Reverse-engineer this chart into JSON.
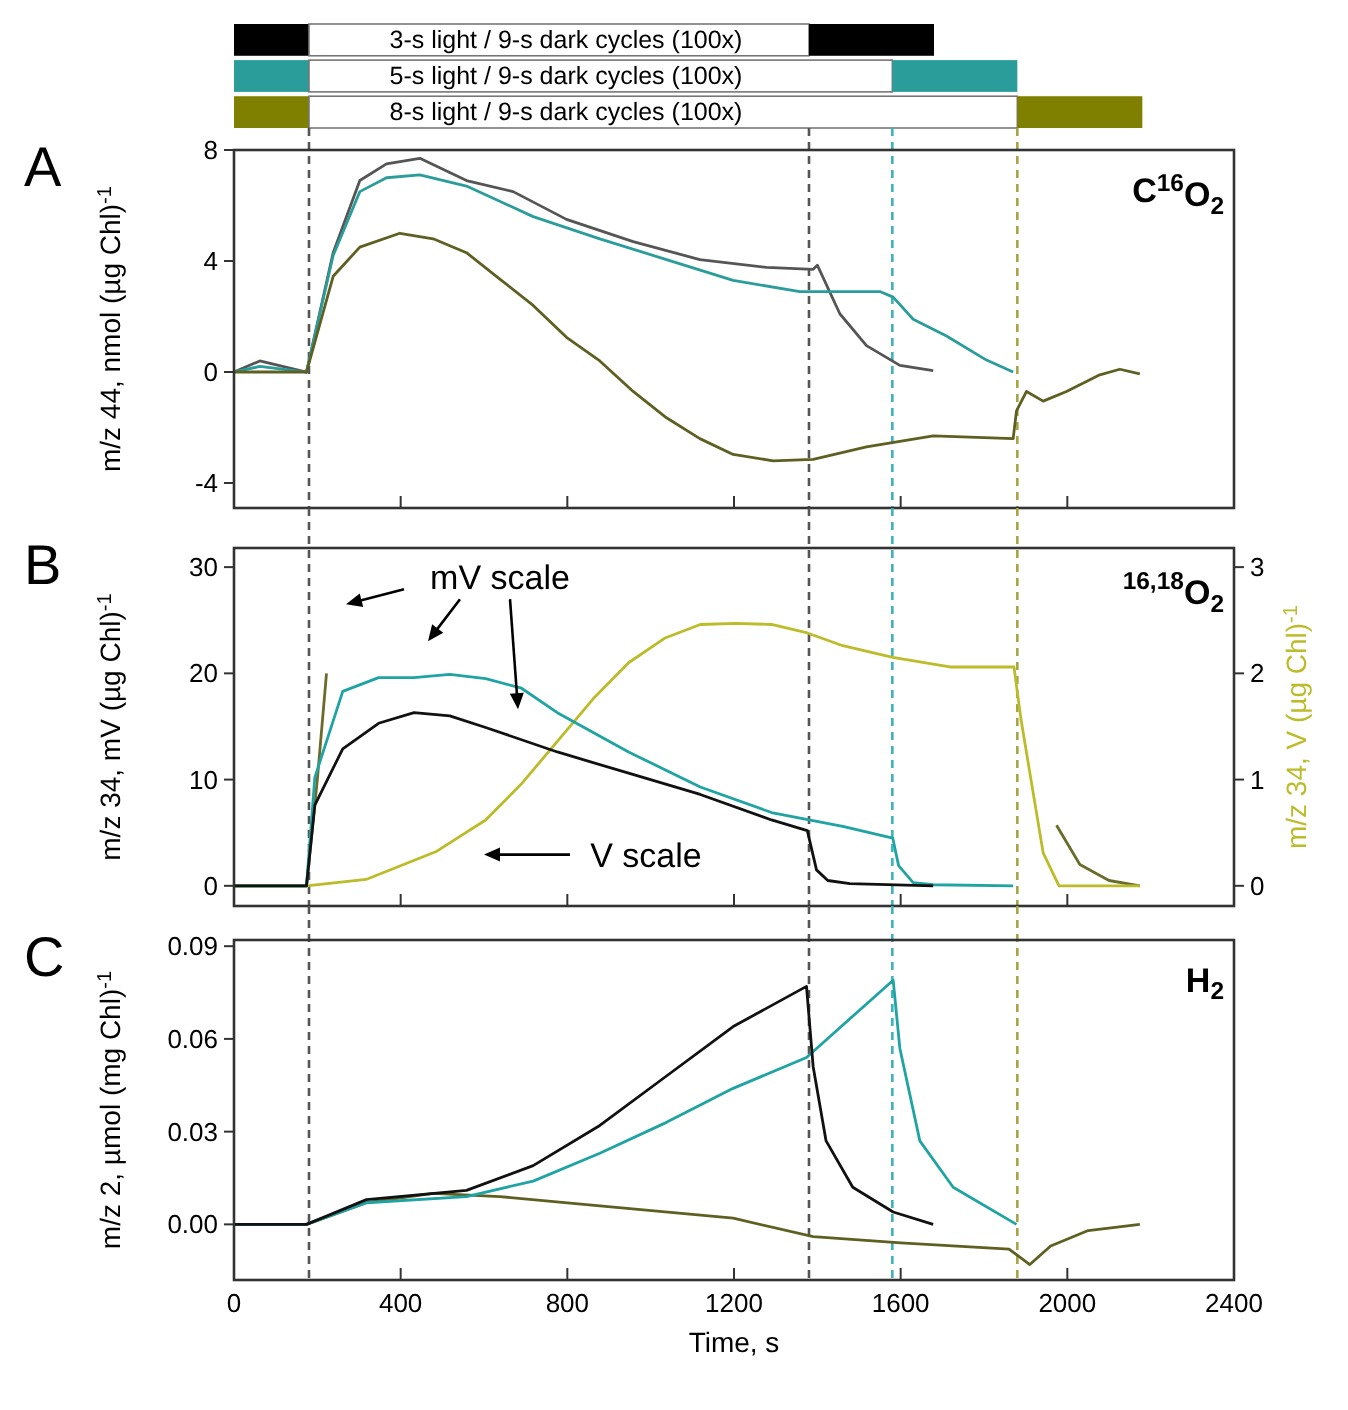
{
  "chart_data": [
    {
      "type": "bar",
      "orientation": "horizontal",
      "stacked": true,
      "categories": [
        null,
        null,
        null
      ],
      "xlim": [
        0,
        2400
      ],
      "tick_labels": false,
      "series": [
        {
          "colors": [
            "#000000",
            "#2a9d9a",
            "#808000"
          ],
          "values": [
            180,
            180,
            180
          ]
        },
        {
          "color": "#ffffff",
          "values": [
            1200,
            1400,
            1700
          ]
        },
        {
          "colors": [
            "#000000",
            "#2a9d9a",
            "#808000"
          ],
          "values": [
            300,
            300,
            300
          ]
        }
      ],
      "annotations": [
        "3-s light / 9-s dark cycles (100x)",
        "5-s light / 9-s dark cycles (100x)",
        "8-s light / 9-s dark cycles (100x)"
      ]
    },
    {
      "type": "line",
      "ylabel": "m/z 44, nmol (µg Chl)$^{-1}$",
      "xlim": [
        0,
        2400
      ],
      "xticks": [
        0,
        400,
        800,
        1200,
        1600,
        2000,
        2400
      ],
      "ylim": [
        -4.9,
        8
      ],
      "yticks": [
        -4,
        0,
        4,
        8
      ],
      "tick_labels": "y",
      "series": [
        {
          "color": "#555555",
          "x": [
            0,
            62,
            174,
            238,
            302,
            366,
            446,
            558,
            670,
            798,
            958,
            1118,
            1278,
            1390,
            1400,
            1454,
            1518,
            1598,
            1678
          ],
          "values": [
            0,
            0.4,
            0,
            4.3,
            6.9,
            7.5,
            7.7,
            6.9,
            6.5,
            5.5,
            4.7,
            4.05,
            3.77,
            3.7,
            3.85,
            2.1,
            0.95,
            0.24,
            0.05
          ]
        },
        {
          "color": "#2a9d9a",
          "x": [
            0,
            62,
            174,
            238,
            302,
            366,
            446,
            558,
            718,
            878,
            1038,
            1198,
            1358,
            1550,
            1582,
            1630,
            1710,
            1806,
            1870
          ],
          "values": [
            0,
            0.2,
            0,
            4.2,
            6.5,
            7.0,
            7.1,
            6.7,
            5.6,
            4.8,
            4.05,
            3.3,
            2.9,
            2.9,
            2.7,
            1.9,
            1.3,
            0.43,
            0
          ]
        },
        {
          "color": "#5f5f22",
          "x": [
            0,
            174,
            238,
            302,
            398,
            478,
            558,
            638,
            718,
            798,
            878,
            958,
            1038,
            1118,
            1198,
            1294,
            1390,
            1518,
            1678,
            1870,
            1878,
            1902,
            1942,
            1998,
            2078,
            2126,
            2174
          ],
          "values": [
            0,
            0,
            3.45,
            4.5,
            5.0,
            4.8,
            4.3,
            3.35,
            2.4,
            1.25,
            0.4,
            -0.7,
            -1.65,
            -2.4,
            -2.97,
            -3.2,
            -3.15,
            -2.7,
            -2.3,
            -2.4,
            -1.4,
            -0.7,
            -1.05,
            -0.7,
            -0.1,
            0.1,
            -0.07
          ]
        }
      ],
      "ref_lines": [
        {
          "axis": "x",
          "value": 180,
          "color": "#555555",
          "line_style": "dashed"
        },
        {
          "axis": "x",
          "value": 1380,
          "color": "#555555",
          "line_style": "dashed"
        },
        {
          "axis": "x",
          "value": 1580,
          "color": "#3cb4c0",
          "line_style": "dashed"
        },
        {
          "axis": "x",
          "value": 1880,
          "color": "#a5a545",
          "line_style": "dashed"
        }
      ],
      "annotations": [
        "A",
        "C$^{16}$O$_{2}$"
      ]
    },
    {
      "type": "line",
      "ylabel": "m/z 34, mV (µg Chl)$^{-1}$",
      "y2label": "m/z 34, V (µg Chl)$^{-1}$",
      "xlim": [
        0,
        2400
      ],
      "xticks": [
        0,
        400,
        800,
        1200,
        1600,
        2000,
        2400
      ],
      "ylim": [
        -1.9,
        31.8
      ],
      "yticks": [
        0,
        10,
        20,
        30
      ],
      "y2lim": [
        -0.19,
        3.18
      ],
      "y2ticks": [
        0,
        1,
        2,
        3
      ],
      "tick_labels": "y",
      "series": [
        {
          "color": "#6b6b2a",
          "x": [
            0,
            174,
            200,
            222,
            244,
            1100,
            1942,
            1974,
            2030,
            2100,
            2174
          ],
          "values": [
            0,
            0,
            10,
            20,
            null,
            null,
            null,
            5.7,
            2,
            0.5,
            0
          ]
        },
        {
          "color": "#bcbc2a",
          "axis": "y2",
          "x": [
            0,
            174,
            317,
            484,
            604,
            690,
            776,
            862,
            947,
            1033,
            1119,
            1205,
            1290,
            1376,
            1461,
            1581,
            1718,
            1872,
            1889,
            1942,
            1980,
            2174
          ],
          "values": [
            0,
            0,
            0.06,
            0.32,
            0.62,
            0.96,
            1.36,
            1.76,
            2.1,
            2.33,
            2.46,
            2.47,
            2.46,
            2.38,
            2.26,
            2.15,
            2.06,
            2.06,
            1.56,
            0.31,
            0,
            0
          ]
        },
        {
          "color": "#1fa3a3",
          "x": [
            0,
            174,
            194,
            261,
            347,
            432,
            518,
            604,
            690,
            776,
            947,
            1119,
            1290,
            1461,
            1581,
            1595,
            1630,
            1678,
            1870
          ],
          "values": [
            0,
            0,
            10.2,
            18.3,
            19.6,
            19.6,
            19.9,
            19.5,
            18.6,
            16.3,
            12.6,
            9.3,
            6.9,
            5.6,
            4.5,
            1.9,
            0.3,
            0.1,
            0
          ]
        },
        {
          "color": "#111111",
          "x": [
            0,
            174,
            194,
            261,
            347,
            432,
            518,
            604,
            776,
            947,
            1119,
            1290,
            1376,
            1398,
            1425,
            1478,
            1678
          ],
          "values": [
            0,
            0,
            7.6,
            12.9,
            15.3,
            16.3,
            16,
            14.9,
            12.6,
            10.6,
            8.6,
            6.2,
            5.2,
            1.5,
            0.5,
            0.2,
            0
          ]
        }
      ],
      "ref_lines": [
        {
          "axis": "x",
          "value": 180,
          "color": "#555555",
          "line_style": "dashed"
        },
        {
          "axis": "x",
          "value": 1380,
          "color": "#555555",
          "line_style": "dashed"
        },
        {
          "axis": "x",
          "value": 1580,
          "color": "#3cb4c0",
          "line_style": "dashed"
        },
        {
          "axis": "x",
          "value": 1880,
          "color": "#a5a545",
          "line_style": "dashed"
        }
      ],
      "annotations": [
        "B",
        "$^{16,18}$O$_{2}$",
        "mV scale",
        "V scale"
      ]
    },
    {
      "type": "line",
      "xlabel": "Time, s",
      "ylabel": "m/z 2, µmol (mg Chl)$^{-1}$",
      "xlim": [
        0,
        2400
      ],
      "xticks": [
        0,
        400,
        800,
        1200,
        1600,
        2000,
        2400
      ],
      "ylim": [
        -0.018,
        0.092
      ],
      "yticks": [
        {
          "value": 0,
          "label": "0.00"
        },
        0.03,
        0.06,
        0.09
      ],
      "series": [
        {
          "color": "#5f5f22",
          "x": [
            0,
            174,
            318,
            478,
            638,
            878,
            1198,
            1390,
            1600,
            1860,
            1910,
            1960,
            2050,
            2174
          ],
          "values": [
            0,
            0,
            0.007,
            0.01,
            0.009,
            0.006,
            0.002,
            -0.004,
            -0.006,
            -0.008,
            -0.013,
            -0.007,
            -0.002,
            0
          ]
        },
        {
          "color": "#1fa3a3",
          "x": [
            0,
            174,
            318,
            558,
            718,
            878,
            1038,
            1198,
            1374,
            1582,
            1598,
            1646,
            1726,
            1878
          ],
          "values": [
            0,
            0,
            0.007,
            0.009,
            0.014,
            0.023,
            0.033,
            0.044,
            0.054,
            0.079,
            0.057,
            0.027,
            0.012,
            0
          ]
        },
        {
          "color": "#111111",
          "x": [
            0,
            174,
            318,
            558,
            718,
            878,
            1038,
            1198,
            1374,
            1390,
            1421,
            1485,
            1582,
            1678
          ],
          "values": [
            0,
            0,
            0.008,
            0.011,
            0.019,
            0.032,
            0.048,
            0.064,
            0.077,
            0.051,
            0.027,
            0.012,
            0.004,
            0
          ]
        }
      ],
      "ref_lines": [
        {
          "axis": "x",
          "value": 180,
          "color": "#555555",
          "line_style": "dashed"
        },
        {
          "axis": "x",
          "value": 1380,
          "color": "#555555",
          "line_style": "dashed"
        },
        {
          "axis": "x",
          "value": 1580,
          "color": "#3cb4c0",
          "line_style": "dashed"
        },
        {
          "axis": "x",
          "value": 1880,
          "color": "#a5a545",
          "line_style": "dashed"
        }
      ],
      "annotations": [
        "C",
        "H$_{2}$"
      ]
    }
  ]
}
